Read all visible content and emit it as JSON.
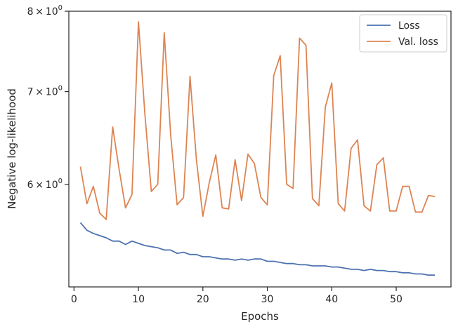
{
  "chart_data": {
    "type": "line",
    "xlabel": "Epochs",
    "ylabel": "Negative log-likelihood",
    "yscale": "log",
    "xlim": [
      -0.8,
      58.5
    ],
    "ylim": [
      5.06,
      8.0
    ],
    "xticks": [
      0,
      10,
      20,
      30,
      40,
      50
    ],
    "yticks": [
      {
        "value": 6,
        "mantissa": "6",
        "times": "×",
        "base": "10",
        "exp": "0"
      },
      {
        "value": 7,
        "mantissa": "7",
        "times": "×",
        "base": "10",
        "exp": "0"
      },
      {
        "value": 8,
        "mantissa": "8",
        "times": "×",
        "base": "10",
        "exp": "0"
      }
    ],
    "legend_position": "top-right",
    "grid": false,
    "x": [
      1,
      2,
      3,
      4,
      5,
      6,
      7,
      8,
      9,
      10,
      11,
      12,
      13,
      14,
      15,
      16,
      17,
      18,
      19,
      20,
      21,
      22,
      23,
      24,
      25,
      26,
      27,
      28,
      29,
      30,
      31,
      32,
      33,
      34,
      35,
      36,
      37,
      38,
      39,
      40,
      41,
      42,
      43,
      44,
      45,
      46,
      47,
      48,
      49,
      50,
      51,
      52,
      53,
      54,
      55,
      56
    ],
    "series": [
      {
        "name": "Loss",
        "color": "#4c72b0",
        "values": [
          5.63,
          5.56,
          5.53,
          5.51,
          5.49,
          5.46,
          5.46,
          5.43,
          5.46,
          5.44,
          5.42,
          5.41,
          5.4,
          5.38,
          5.38,
          5.35,
          5.36,
          5.34,
          5.34,
          5.32,
          5.32,
          5.31,
          5.3,
          5.3,
          5.29,
          5.3,
          5.29,
          5.3,
          5.3,
          5.28,
          5.28,
          5.27,
          5.26,
          5.26,
          5.25,
          5.25,
          5.24,
          5.24,
          5.24,
          5.23,
          5.23,
          5.22,
          5.21,
          5.21,
          5.2,
          5.21,
          5.2,
          5.2,
          5.19,
          5.19,
          5.18,
          5.18,
          5.17,
          5.17,
          5.16,
          5.16
        ]
      },
      {
        "name": "Val. loss",
        "color": "#dd8452",
        "values": [
          6.18,
          5.81,
          5.98,
          5.72,
          5.66,
          6.6,
          6.15,
          5.77,
          5.9,
          7.86,
          6.75,
          5.93,
          6.0,
          7.72,
          6.52,
          5.8,
          5.87,
          7.18,
          6.25,
          5.69,
          6.02,
          6.3,
          5.77,
          5.76,
          6.25,
          5.84,
          6.31,
          6.21,
          5.87,
          5.8,
          7.19,
          7.43,
          6.0,
          5.96,
          7.65,
          7.56,
          5.86,
          5.79,
          6.82,
          7.1,
          5.81,
          5.74,
          6.37,
          6.46,
          5.79,
          5.74,
          6.2,
          6.27,
          5.74,
          5.74,
          5.98,
          5.98,
          5.73,
          5.73,
          5.89,
          5.88
        ]
      }
    ]
  }
}
